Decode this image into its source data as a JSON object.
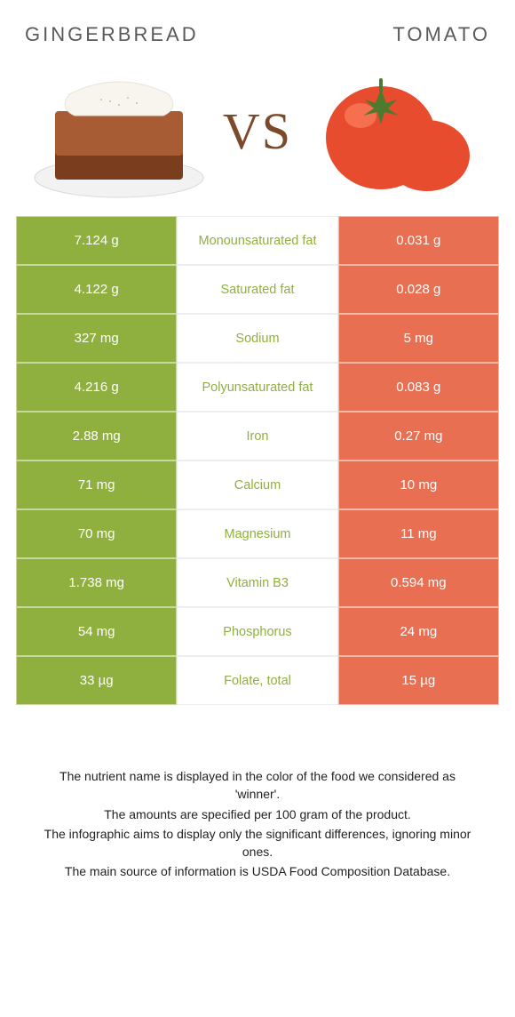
{
  "titles": {
    "left": "GINGERBREAD",
    "right": "TOMATO"
  },
  "vs": "VS",
  "colors": {
    "left_bg": "#8fb03e",
    "right_bg": "#e96f53",
    "mid_text_winner_left": "#8fb03e",
    "mid_text_winner_right": "#e96f53"
  },
  "rows": [
    {
      "left": "7.124 g",
      "label": "Monounsaturated fat",
      "right": "0.031 g",
      "winner": "left"
    },
    {
      "left": "4.122 g",
      "label": "Saturated fat",
      "right": "0.028 g",
      "winner": "left"
    },
    {
      "left": "327 mg",
      "label": "Sodium",
      "right": "5 mg",
      "winner": "left"
    },
    {
      "left": "4.216 g",
      "label": "Polyunsaturated fat",
      "right": "0.083 g",
      "winner": "left"
    },
    {
      "left": "2.88 mg",
      "label": "Iron",
      "right": "0.27 mg",
      "winner": "left"
    },
    {
      "left": "71 mg",
      "label": "Calcium",
      "right": "10 mg",
      "winner": "left"
    },
    {
      "left": "70 mg",
      "label": "Magnesium",
      "right": "11 mg",
      "winner": "left"
    },
    {
      "left": "1.738 mg",
      "label": "Vitamin B3",
      "right": "0.594 mg",
      "winner": "left"
    },
    {
      "left": "54 mg",
      "label": "Phosphorus",
      "right": "24 mg",
      "winner": "left"
    },
    {
      "left": "33 µg",
      "label": "Folate, total",
      "right": "15 µg",
      "winner": "left"
    }
  ],
  "footer": [
    "The nutrient name is displayed in the color of the food we considered as 'winner'.",
    "The amounts are specified per 100 gram of the product.",
    "The infographic aims to display only the significant differences, ignoring minor ones.",
    "The main source of information is USDA Food Composition Database."
  ]
}
